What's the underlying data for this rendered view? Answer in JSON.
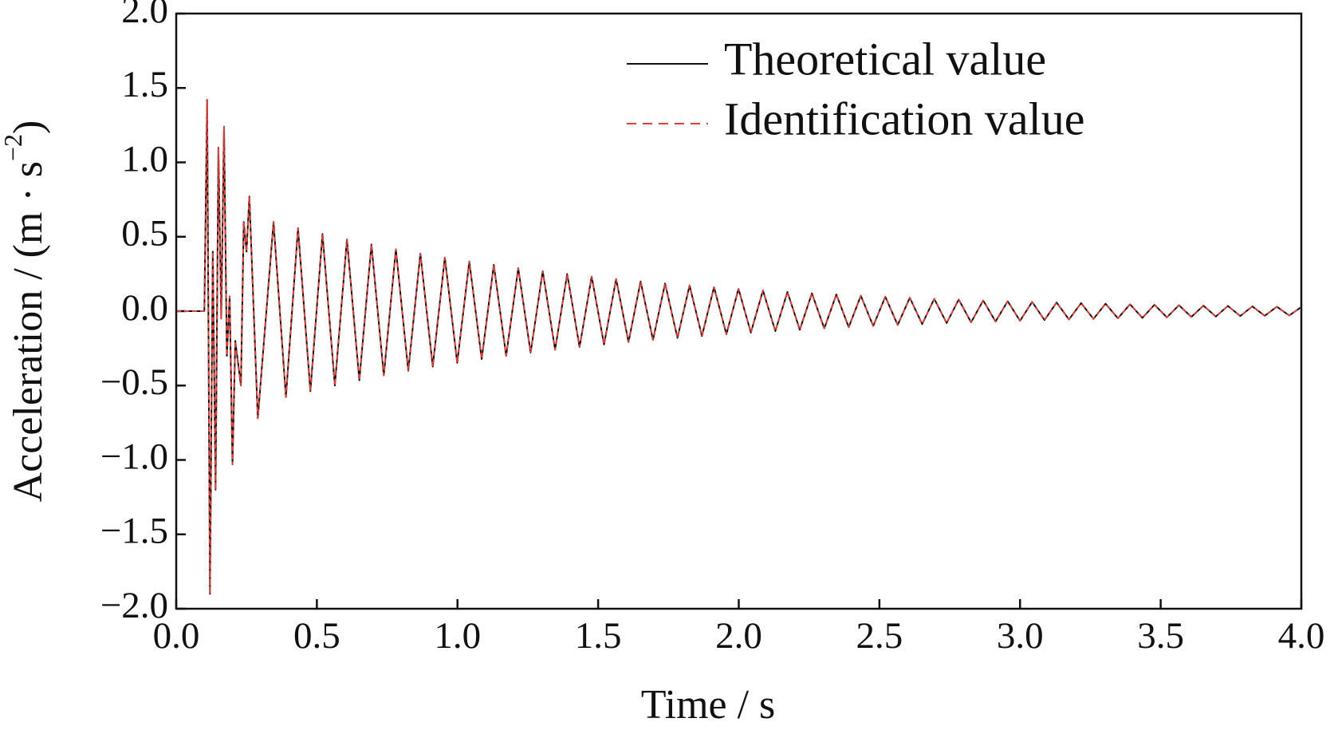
{
  "chart_data": {
    "type": "line",
    "y_label": {
      "main": "Acceleration / (m · s",
      "sup": "−2",
      "close": ")"
    },
    "x_label": "Time / s",
    "xlim": [
      0,
      4.0
    ],
    "ylim": [
      -2.0,
      2.0
    ],
    "xticks": [
      {
        "value": 0,
        "label": "0.0"
      },
      {
        "value": 0.5,
        "label": "0.5"
      },
      {
        "value": 1,
        "label": "1.0"
      },
      {
        "value": 1.5,
        "label": "1.5"
      },
      {
        "value": 2,
        "label": "2.0"
      },
      {
        "value": 2.5,
        "label": "2.5"
      },
      {
        "value": 3,
        "label": "3.0"
      },
      {
        "value": 3.5,
        "label": "3.5"
      },
      {
        "value": 4,
        "label": "4.0"
      }
    ],
    "yticks": [
      {
        "value": -2,
        "label": "−2.0"
      },
      {
        "value": -1.5,
        "label": "−1.5"
      },
      {
        "value": -1,
        "label": "−1.0"
      },
      {
        "value": -0.5,
        "label": "−0.5"
      },
      {
        "value": 0,
        "label": "0.0"
      },
      {
        "value": 0.5,
        "label": "0.5"
      },
      {
        "value": 1,
        "label": "1.0"
      },
      {
        "value": 1.5,
        "label": "1.5"
      },
      {
        "value": 2,
        "label": "2.0"
      }
    ],
    "legend": "upper right",
    "x": [
      0,
      0.1,
      0.11,
      0.12,
      0.13,
      0.14,
      0.15,
      0.16,
      0.17,
      0.18,
      0.19,
      0.2,
      0.21,
      0.23,
      0.24,
      0.25,
      0.26,
      0.29,
      0.346,
      0.39,
      0.433,
      0.477,
      0.52,
      0.564,
      0.607,
      0.651,
      0.694,
      0.738,
      0.781,
      0.825,
      0.868,
      0.912,
      0.955,
      0.999,
      1.042,
      1.086,
      1.129,
      1.173,
      1.216,
      1.26,
      1.303,
      1.347,
      1.39,
      1.434,
      1.477,
      1.521,
      1.564,
      1.608,
      1.651,
      1.695,
      1.738,
      1.782,
      1.825,
      1.869,
      1.912,
      1.956,
      1.999,
      2.043,
      2.086,
      2.13,
      2.173,
      2.217,
      2.26,
      2.304,
      2.347,
      2.391,
      2.434,
      2.478,
      2.521,
      2.565,
      2.608,
      2.652,
      2.695,
      2.739,
      2.782,
      2.826,
      2.869,
      2.913,
      2.956,
      3.0,
      3.043,
      3.087,
      3.13,
      3.174,
      3.217,
      3.261,
      3.304,
      3.348,
      3.391,
      3.435,
      3.478,
      3.522,
      3.565,
      3.609,
      3.652,
      3.696,
      3.739,
      3.783,
      3.826,
      3.87,
      3.913,
      3.957,
      4.0
    ],
    "series": [
      {
        "name": "Theoretical value",
        "color": "#111111",
        "dash": false,
        "values": [
          0,
          0,
          1.42,
          -1.9,
          0.4,
          -1.2,
          1.1,
          -0.05,
          1.24,
          -0.3,
          0.1,
          -1.03,
          -0.2,
          -0.5,
          0.6,
          0.4,
          0.77,
          -0.72,
          0.6,
          -0.578,
          0.558,
          -0.538,
          0.518,
          -0.5,
          0.482,
          -0.465,
          0.448,
          -0.432,
          0.416,
          -0.401,
          0.387,
          -0.373,
          0.36,
          -0.347,
          0.334,
          -0.322,
          0.311,
          -0.3,
          0.289,
          -0.279,
          0.269,
          -0.259,
          0.25,
          -0.241,
          0.232,
          -0.224,
          0.216,
          -0.208,
          0.2,
          -0.193,
          0.186,
          -0.18,
          0.173,
          -0.167,
          0.161,
          -0.155,
          0.15,
          -0.144,
          0.139,
          -0.134,
          0.129,
          -0.125,
          0.12,
          -0.116,
          0.112,
          -0.108,
          0.104,
          -0.1,
          0.097,
          -0.093,
          0.09,
          -0.087,
          0.083,
          -0.08,
          0.078,
          -0.075,
          0.072,
          -0.07,
          0.067,
          -0.065,
          0.062,
          -0.06,
          0.058,
          -0.056,
          0.054,
          -0.052,
          0.05,
          -0.048,
          0.046,
          -0.045,
          0.043,
          -0.042,
          0.04,
          -0.039,
          0.037,
          -0.036,
          0.035,
          -0.033,
          0.032,
          -0.031,
          0.03,
          -0.029,
          0.028
        ]
      },
      {
        "name": "Identification value",
        "color": "#d9423a",
        "dash": true,
        "values": [
          0,
          0,
          1.42,
          -1.9,
          0.4,
          -1.2,
          1.1,
          -0.05,
          1.24,
          -0.3,
          0.1,
          -1.03,
          -0.2,
          -0.5,
          0.6,
          0.4,
          0.77,
          -0.72,
          0.6,
          -0.578,
          0.558,
          -0.538,
          0.518,
          -0.5,
          0.482,
          -0.465,
          0.448,
          -0.432,
          0.416,
          -0.401,
          0.387,
          -0.373,
          0.36,
          -0.347,
          0.334,
          -0.322,
          0.311,
          -0.3,
          0.289,
          -0.279,
          0.269,
          -0.259,
          0.25,
          -0.241,
          0.232,
          -0.224,
          0.216,
          -0.208,
          0.2,
          -0.193,
          0.186,
          -0.18,
          0.173,
          -0.167,
          0.161,
          -0.155,
          0.15,
          -0.144,
          0.139,
          -0.134,
          0.129,
          -0.125,
          0.12,
          -0.116,
          0.112,
          -0.108,
          0.104,
          -0.1,
          0.097,
          -0.093,
          0.09,
          -0.087,
          0.083,
          -0.08,
          0.078,
          -0.075,
          0.072,
          -0.07,
          0.067,
          -0.065,
          0.062,
          -0.06,
          0.058,
          -0.056,
          0.054,
          -0.052,
          0.05,
          -0.048,
          0.046,
          -0.045,
          0.043,
          -0.042,
          0.04,
          -0.039,
          0.037,
          -0.036,
          0.035,
          -0.033,
          0.032,
          -0.031,
          0.03,
          -0.029,
          0.028
        ]
      }
    ]
  }
}
